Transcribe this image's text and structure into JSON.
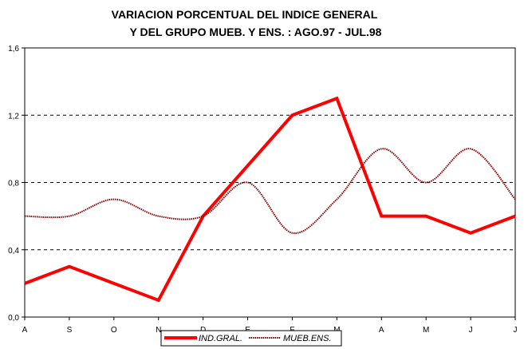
{
  "chart_data": {
    "type": "line",
    "title": "VARIACION PORCENTUAL DEL INDICE GENERAL",
    "subtitle": "Y DEL GRUPO MUEB. Y ENS. : AGO.97 - JUL.98",
    "categories": [
      "A",
      "S",
      "O",
      "N",
      "D",
      "E",
      "F",
      "M",
      "A",
      "M",
      "J",
      "J"
    ],
    "y_ticks": [
      "0,0",
      "0,4",
      "0,8",
      "1,2",
      "1,6"
    ],
    "ylim": [
      0,
      1.6
    ],
    "grid": "horizontal dashed",
    "legend_position": "bottom",
    "series": [
      {
        "name": "IND.GRAL.",
        "color": "#ff0000",
        "smooth": false,
        "values": [
          0.2,
          0.3,
          0.2,
          0.1,
          0.6,
          0.9,
          1.2,
          1.3,
          0.6,
          0.6,
          0.5,
          0.6
        ]
      },
      {
        "name": "MUEB.ENS.",
        "color": "#800000",
        "smooth": true,
        "values": [
          0.6,
          0.6,
          0.7,
          0.6,
          0.6,
          0.8,
          0.5,
          0.7,
          1.0,
          0.8,
          1.0,
          0.7
        ]
      }
    ]
  }
}
